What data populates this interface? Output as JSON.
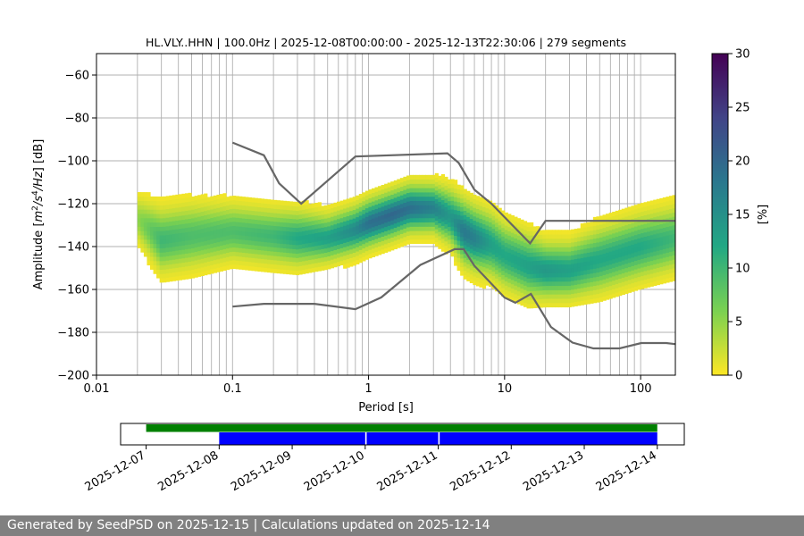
{
  "footer": "Generated by SeedPSD on 2025-12-15 | Calculations updated on 2025-12-14",
  "chart_data": {
    "type": "heatmap",
    "title": "HL.VLY..HHN | 100.0Hz | 2025-12-08T00:00:00 - 2025-12-13T22:30:06 | 279 segments",
    "xlabel": "Period [s]",
    "ylabel": "Amplitude [m²/s⁴/Hz] [dB]",
    "x_scale": "log",
    "xlim": [
      0.01,
      180
    ],
    "ylim": [
      -200,
      -50
    ],
    "x_ticks": [
      {
        "v": 0.01,
        "label": "0.01"
      },
      {
        "v": 0.1,
        "label": "0.1"
      },
      {
        "v": 1,
        "label": "1"
      },
      {
        "v": 10,
        "label": "10"
      },
      {
        "v": 100,
        "label": "100"
      }
    ],
    "y_ticks": [
      -60,
      -80,
      -100,
      -120,
      -140,
      -160,
      -180,
      -200
    ],
    "y_tick_labels": [
      "−60",
      "−80",
      "−100",
      "−120",
      "−140",
      "−160",
      "−180",
      "−200"
    ],
    "grid": true,
    "colorbar": {
      "label": "[%]",
      "range": [
        0,
        30
      ],
      "ticks": [
        0,
        5,
        10,
        15,
        20,
        25,
        30
      ],
      "colormap": [
        "#fde725",
        "#7ad151",
        "#22a884",
        "#2a788e",
        "#414487",
        "#440154"
      ]
    },
    "density_band": {
      "period": [
        0.02,
        0.03,
        0.05,
        0.1,
        0.2,
        0.3,
        0.5,
        0.8,
        1.0,
        1.5,
        2.0,
        3.0,
        4.0,
        5.0,
        6.0,
        8.0,
        10,
        15,
        20,
        30,
        50,
        100,
        180
      ],
      "center_db": [
        -128,
        -138,
        -136,
        -134,
        -136,
        -137,
        -137,
        -133,
        -130,
        -126,
        -123,
        -123,
        -127,
        -134,
        -137,
        -140,
        -145,
        -150,
        -152,
        -152,
        -147,
        -141,
        -137
      ],
      "spread_db": [
        6,
        8,
        8,
        7,
        7,
        7,
        6,
        6,
        6,
        6,
        6,
        6,
        7,
        8,
        8,
        8,
        8,
        8,
        7,
        7,
        8,
        8,
        8
      ],
      "peak_percent": [
        5,
        10,
        9,
        9,
        10,
        12,
        13,
        16,
        19,
        20,
        19,
        17,
        14,
        18,
        17,
        13,
        12,
        13,
        14,
        13,
        12,
        12,
        10
      ]
    },
    "series": [
      {
        "period": [
          0.1,
          0.17,
          0.22,
          0.32,
          0.8,
          3.8,
          4.6,
          6.0,
          8.0,
          15.4,
          20.0,
          180.0
        ],
        "db": [
          -91.5,
          -97.4,
          -110.5,
          -120.0,
          -98.0,
          -96.5,
          -101.0,
          -113.5,
          -120.0,
          -138.5,
          -128.0,
          -128.0
        ]
      },
      {
        "period": [
          0.1,
          0.17,
          0.4,
          0.8,
          1.24,
          2.4,
          4.3,
          5.0,
          6.0,
          10.0,
          12.0,
          15.6,
          21.9,
          31.6,
          45.0,
          70.0,
          101.0,
          154.0,
          180.0
        ],
        "db": [
          -168.0,
          -166.7,
          -166.7,
          -169.2,
          -163.7,
          -148.6,
          -141.2,
          -141.2,
          -149.0,
          -163.8,
          -166.2,
          -162.1,
          -177.5,
          -184.8,
          -187.5,
          -187.5,
          -185.0,
          -185.0,
          -185.5
        ]
      }
    ],
    "timeline": {
      "date_ticks": [
        "2025-12-07",
        "2025-12-08",
        "2025-12-09",
        "2025-12-10",
        "2025-12-11",
        "2025-12-12",
        "2025-12-13",
        "2025-12-14"
      ],
      "range_days": [
        -0.35,
        7.37
      ],
      "available_days": [
        [
          0.0,
          7.0
        ]
      ],
      "used_days": [
        [
          1.0,
          3.0
        ],
        [
          3.02,
          4.0
        ],
        [
          4.02,
          7.0
        ]
      ],
      "available_color": "#008000",
      "used_color": "#0000ff"
    }
  }
}
